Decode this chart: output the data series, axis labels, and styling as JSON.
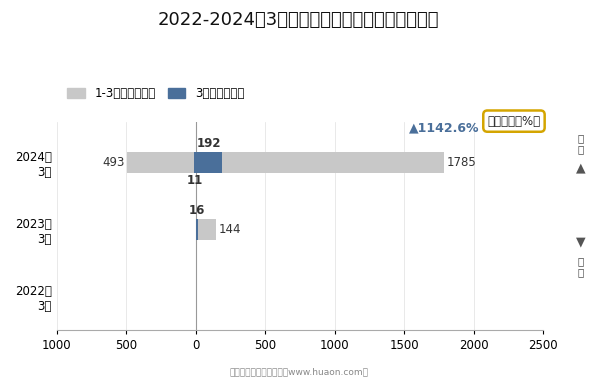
{
  "title": "2022-2024年3月重庆万州综合保税区进、出口额",
  "categories": [
    "2022年\n3月",
    "2023年\n3月",
    "2024年\n3月"
  ],
  "export_cumulative": [
    0,
    144,
    1785
  ],
  "export_monthly": [
    0,
    16,
    192
  ],
  "import_cumulative": [
    0,
    0,
    -493
  ],
  "import_monthly": [
    0,
    0,
    -11
  ],
  "bar_color_light": "#c8c8c8",
  "bar_color_dark": "#4a6f9a",
  "xlim_right": 2500,
  "xlim_left": -1000,
  "xticks_positive": [
    0,
    500,
    1000,
    1500,
    2000,
    2500
  ],
  "xticks_negative": [
    -500,
    -1000
  ],
  "legend_labels": [
    "1-3月（万美元）",
    "3月（万美元）"
  ],
  "annotation_text": "▲1142.6%",
  "bubble_text": "同比增速（%）",
  "background_color": "#ffffff",
  "title_fontsize": 13,
  "label_fontsize": 9
}
